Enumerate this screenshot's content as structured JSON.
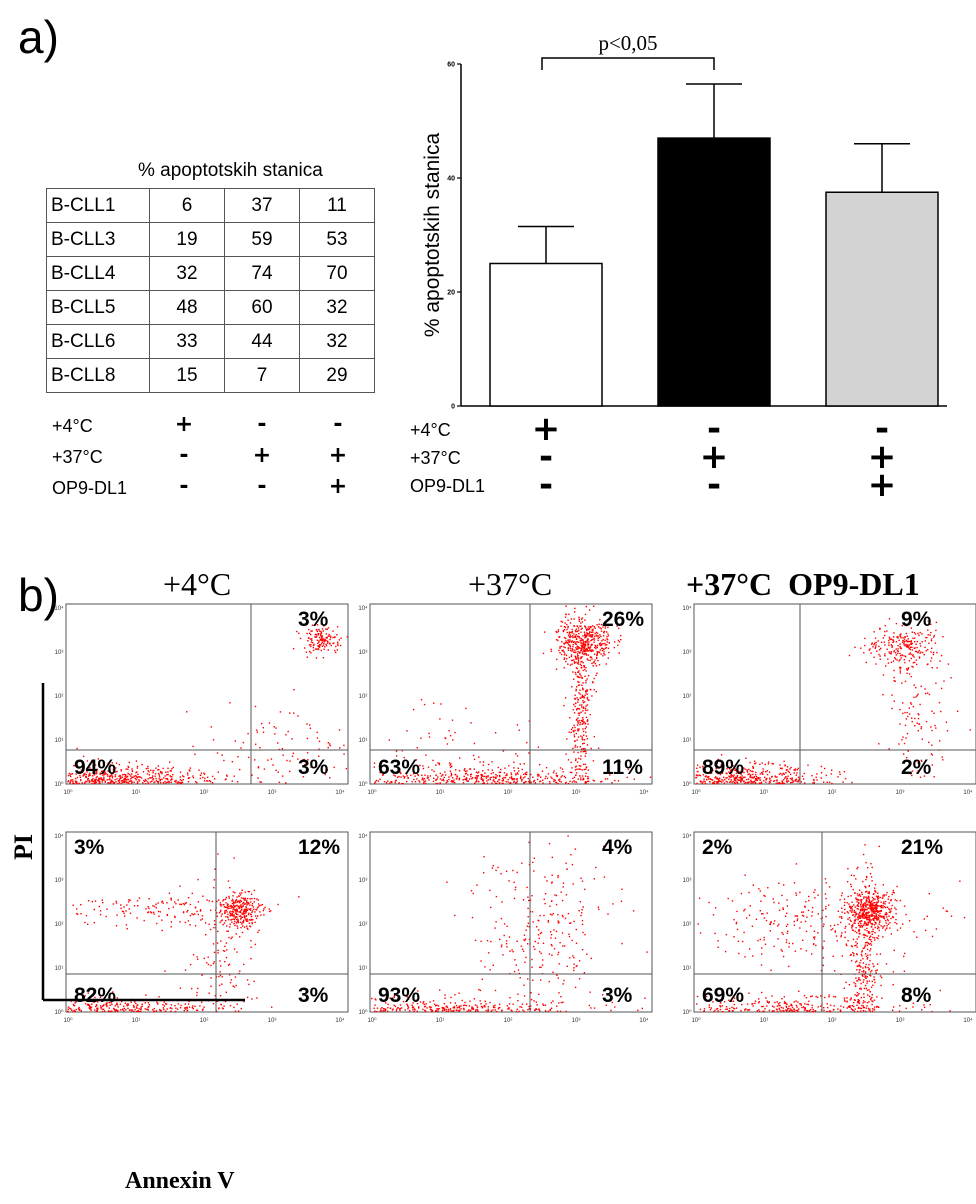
{
  "panel_a": {
    "letter": "a)",
    "table": {
      "header": "% apoptotskih stanica",
      "rows": [
        {
          "label": "B-CLL1",
          "values": [
            "6",
            "37",
            "11"
          ]
        },
        {
          "label": "B-CLL3",
          "values": [
            "19",
            "59",
            "53"
          ]
        },
        {
          "label": "B-CLL4",
          "values": [
            "32",
            "74",
            "70"
          ]
        },
        {
          "label": "B-CLL5",
          "values": [
            "48",
            "60",
            "32"
          ]
        },
        {
          "label": "B-CLL6",
          "values": [
            "33",
            "44",
            "32"
          ]
        },
        {
          "label": "B-CLL8",
          "values": [
            "15",
            "7",
            "29"
          ]
        }
      ],
      "conditions": [
        {
          "label": "+4°C",
          "values": [
            "+",
            "-",
            "-"
          ]
        },
        {
          "label": "+37°C",
          "values": [
            "-",
            "+",
            "+"
          ]
        },
        {
          "label": "OP9-DL1",
          "values": [
            "-",
            "-",
            "+"
          ]
        }
      ]
    },
    "bar_conditions": [
      {
        "label": "+4°C",
        "values": [
          "+",
          "-",
          "-"
        ]
      },
      {
        "label": "+37°C",
        "values": [
          "-",
          "+",
          "+"
        ]
      },
      {
        "label": "OP9-DL1",
        "values": [
          "-",
          "-",
          "+"
        ]
      }
    ],
    "significance": "p<0,05"
  },
  "panel_b": {
    "letter": "b)",
    "column_titles": [
      "+4°C",
      "+37°C",
      "+37°C  OP9-DL1"
    ],
    "y_axis_label": "PI",
    "x_axis_label": "Annexin V",
    "x_ticks": [
      "10⁰",
      "10¹",
      "10²",
      "10³",
      "10⁴"
    ],
    "y_ticks": [
      "10⁰",
      "10¹",
      "10²",
      "10³",
      "10⁴"
    ],
    "plots": [
      {
        "ur": "3%",
        "ll": "94%",
        "lr": "3%",
        "ul": ""
      },
      {
        "ur": "26%",
        "ll": "63%",
        "lr": "11%",
        "ul": ""
      },
      {
        "ur": "9%",
        "ll": "89%",
        "lr": "2%",
        "ul": ""
      },
      {
        "ur": "12%",
        "ll": "82%",
        "lr": "3%",
        "ul": "3%"
      },
      {
        "ur": "4%",
        "ll": "93%",
        "lr": "3%",
        "ul": ""
      },
      {
        "ur": "21%",
        "ll": "69%",
        "lr": "8%",
        "ul": "2%"
      }
    ],
    "dot_color": "#ff0000"
  },
  "chart_data": [
    {
      "type": "bar",
      "categories": [
        "+4°C",
        "+37°C",
        "+37°C OP9-DL1"
      ],
      "values": [
        25,
        47,
        37.5
      ],
      "errors": [
        6.5,
        9.5,
        8.5
      ],
      "bar_colors": [
        "#ffffff",
        "#000000",
        "#d3d3d3"
      ],
      "title": "",
      "xlabel": "",
      "ylabel": "% apoptotskih stanica",
      "ylim": [
        0,
        60
      ],
      "yticks": [
        0,
        20,
        40,
        60
      ],
      "annotation": "p<0,05"
    },
    {
      "type": "scatter",
      "title": "+4°C",
      "xlabel": "Annexin V",
      "ylabel": "PI",
      "quadrants": {
        "ll": "94%",
        "lr": "3%",
        "ur": "3%"
      }
    }
  ]
}
